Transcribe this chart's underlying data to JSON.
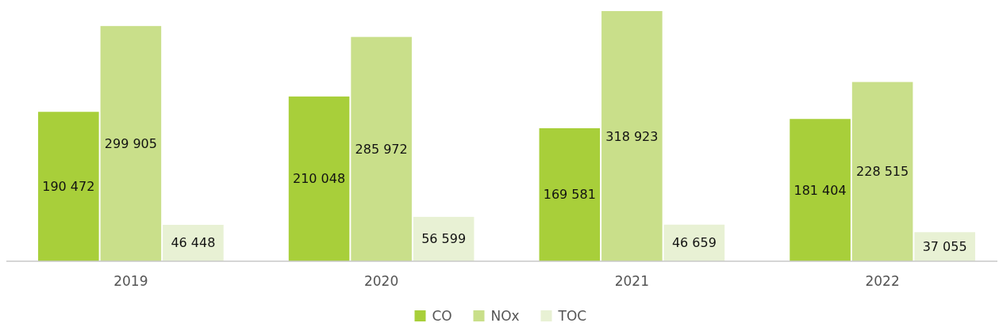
{
  "chart_data": {
    "type": "bar",
    "categories": [
      "2019",
      "2020",
      "2021",
      "2022"
    ],
    "series": [
      {
        "name": "CO",
        "color": "#a8cf3a",
        "values": [
          190472,
          210048,
          169581,
          181404
        ],
        "value_labels": [
          "190 472",
          "210 048",
          "169 581",
          "181 404"
        ]
      },
      {
        "name": "NOx",
        "color": "#c9df8a",
        "values": [
          299905,
          285972,
          318923,
          228515
        ],
        "value_labels": [
          "299 905",
          "285 972",
          "318 923",
          "228 515"
        ]
      },
      {
        "name": "TOC",
        "color": "#e8f1d4",
        "values": [
          46448,
          56599,
          46659,
          37055
        ],
        "value_labels": [
          "46 448",
          "56 599",
          "46 659",
          "37 055"
        ]
      }
    ],
    "legend": "bottom",
    "grid": false
  }
}
